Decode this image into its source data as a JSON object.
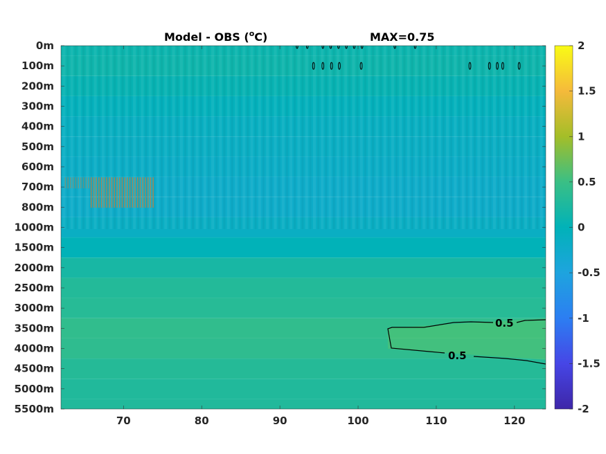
{
  "title": {
    "prefix": "Model - OBS (",
    "superscript": "o",
    "suffix": "C)",
    "max_label": "MAX=0.75"
  },
  "chart_data": {
    "type": "heatmap",
    "x_ticks": [
      "70",
      "80",
      "90",
      "100",
      "110",
      "120"
    ],
    "x_tick_values": [
      70,
      80,
      90,
      100,
      110,
      120
    ],
    "xlim": [
      62,
      124
    ],
    "y_ticks": [
      "0m",
      "100m",
      "200m",
      "300m",
      "400m",
      "500m",
      "600m",
      "700m",
      "800m",
      "1000m",
      "1500m",
      "2000m",
      "2500m",
      "3000m",
      "3500m",
      "4000m",
      "4500m",
      "5000m",
      "5500m"
    ],
    "y_reversed": true,
    "colorbar": {
      "ticks": [
        "2",
        "1.5",
        "1",
        "0.5",
        "0",
        "-0.5",
        "-1",
        "-1.5",
        "-2"
      ],
      "range": [
        -2,
        2
      ],
      "colormap": "parula"
    },
    "contour_labels": [
      "0.5",
      "0.5"
    ],
    "contour_level": 0.5,
    "max_value": 0.75,
    "depth_profile": [
      {
        "depth": "0m",
        "value": 0.1
      },
      {
        "depth": "100m",
        "value": 0.12
      },
      {
        "depth": "200m",
        "value": 0.05
      },
      {
        "depth": "300m",
        "value": -0.05
      },
      {
        "depth": "400m",
        "value": -0.12
      },
      {
        "depth": "500m",
        "value": -0.15
      },
      {
        "depth": "600m",
        "value": -0.18
      },
      {
        "depth": "700m",
        "value": -0.22
      },
      {
        "depth": "800m",
        "value": -0.22
      },
      {
        "depth": "1000m",
        "value": -0.15
      },
      {
        "depth": "1500m",
        "value": 0.0
      },
      {
        "depth": "2000m",
        "value": 0.2
      },
      {
        "depth": "2500m",
        "value": 0.3
      },
      {
        "depth": "3000m",
        "value": 0.33
      },
      {
        "depth": "3500m",
        "value": 0.42
      },
      {
        "depth": "4000m",
        "value": 0.4
      },
      {
        "depth": "4500m",
        "value": 0.32
      },
      {
        "depth": "5000m",
        "value": 0.28
      },
      {
        "depth": "5500m",
        "value": 0.28
      }
    ],
    "colors": {
      "warm_patch": "#c8803a",
      "contour": "#000000"
    }
  }
}
